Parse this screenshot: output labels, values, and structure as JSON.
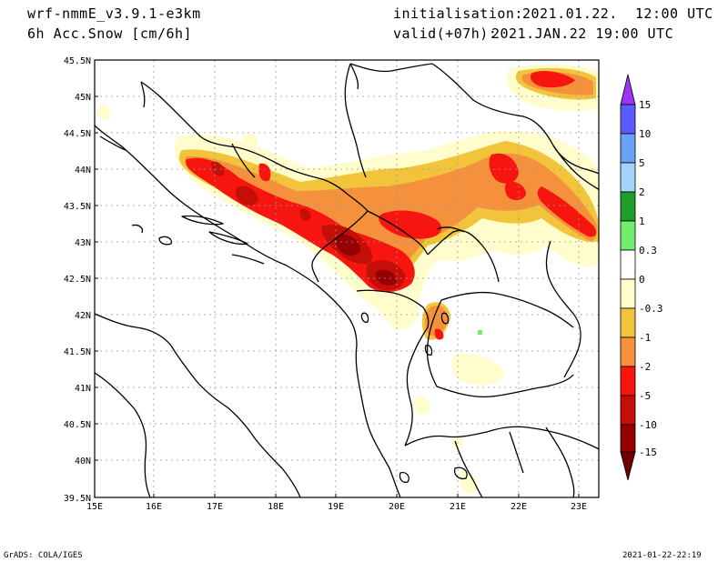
{
  "header": {
    "model": "wrf-nmmE_v3.9.1-e3km",
    "field": "6h Acc.Snow [cm/6h]",
    "init_label": "initialisation:",
    "init_value": "2021.01.22.  12:00 UTC",
    "valid_label": "valid(+07h):",
    "valid_value": "2021.JAN.22 19:00 UTC"
  },
  "map": {
    "lat_labels": [
      "45.5N",
      "45N",
      "44.5N",
      "44N",
      "43.5N",
      "43N",
      "42.5N",
      "42N",
      "41.5N",
      "41N",
      "40.5N",
      "40N",
      "39.5N"
    ],
    "lon_labels": [
      "15E",
      "16E",
      "17E",
      "18E",
      "19E",
      "20E",
      "21E",
      "22E",
      "23E"
    ],
    "grid": "dotted"
  },
  "colorbar": {
    "labels": [
      "15",
      "10",
      "5",
      "2",
      "1",
      "0.3",
      "0",
      "-0.3",
      "-1",
      "-2",
      "-5",
      "-10",
      "-15"
    ],
    "colors": [
      "#5a5cff",
      "#69a3f5",
      "#a5d4fb",
      "#1f9c2a",
      "#71ee6e",
      "#ffffff",
      "#fffdcc",
      "#f2c43c",
      "#f5903d",
      "#f6160f",
      "#c40e08",
      "#960000"
    ],
    "top_arrow_color": "#9c35f5",
    "bottom_arrow_color": "#6e0000"
  },
  "footer": {
    "left": "GrADS: COLA/IGES",
    "right": "2021-01-22-22:19"
  }
}
